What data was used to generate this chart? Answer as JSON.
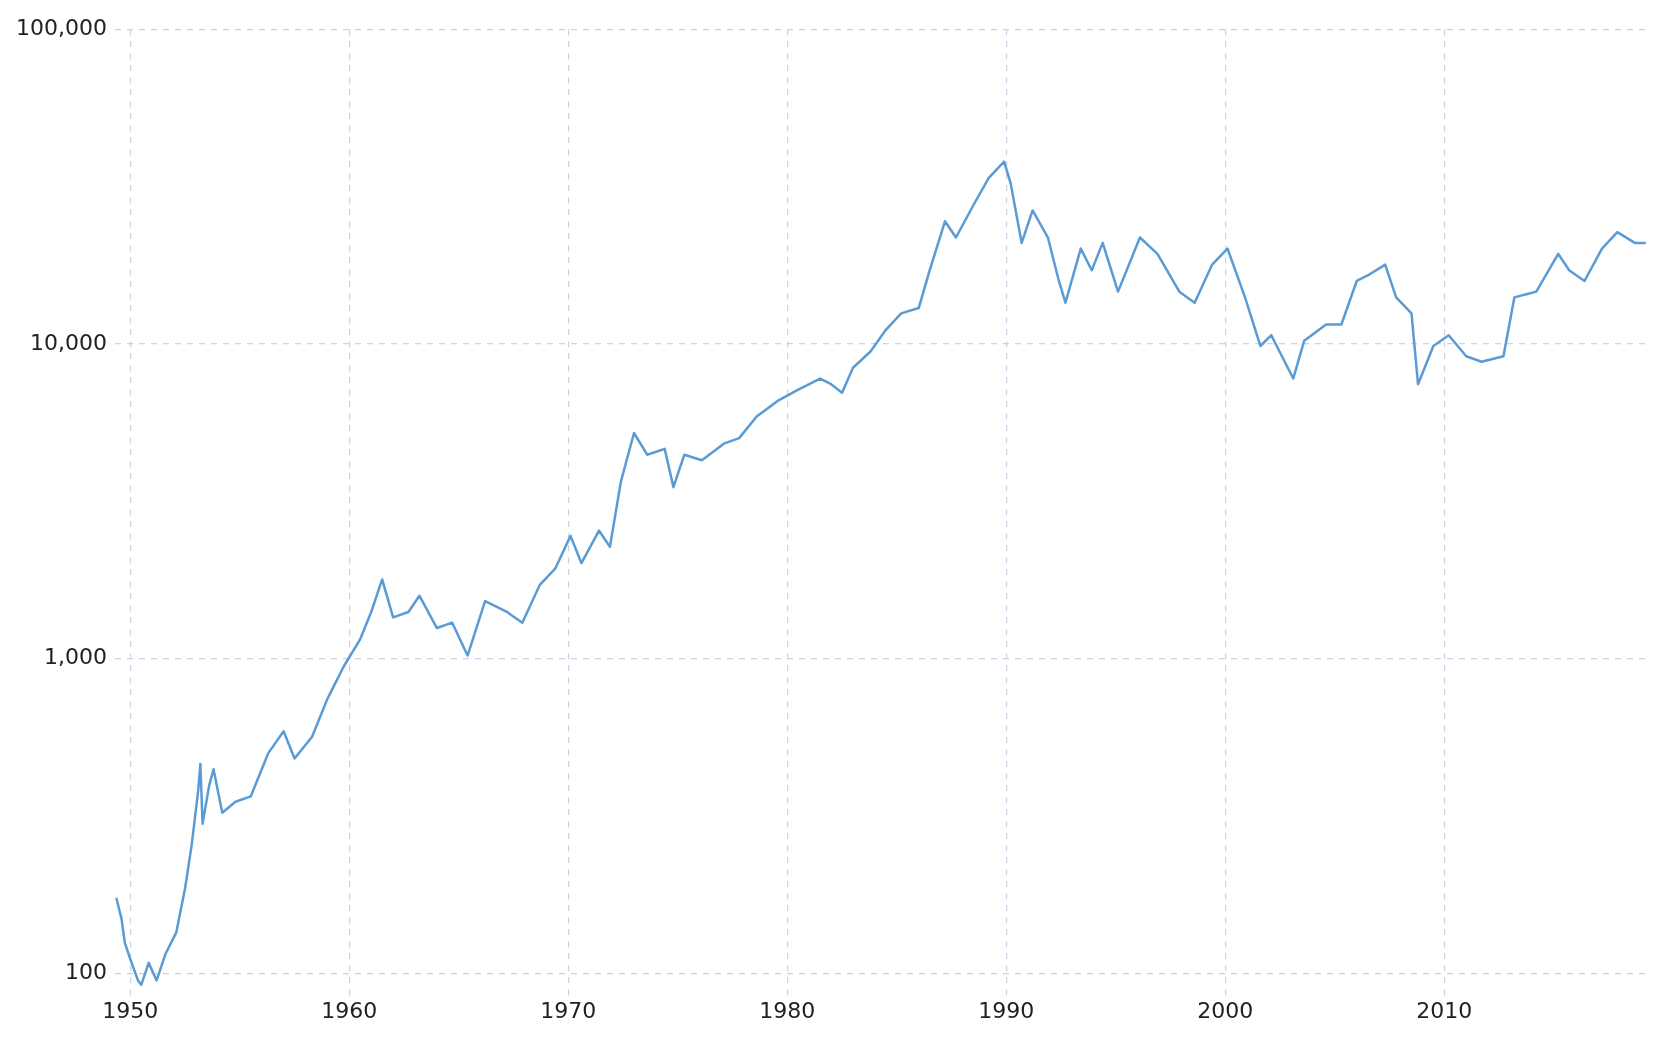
{
  "chart_data": {
    "type": "line",
    "log": "y",
    "grid": true,
    "marker": "none",
    "line_style": "solid",
    "xlim": [
      1949.3,
      2019.3
    ],
    "xticks": [
      1950,
      1960,
      1970,
      1980,
      1990,
      2000,
      2010
    ],
    "ylim": [
      85,
      100000
    ],
    "yticks": [
      {
        "value": 100,
        "label": "100"
      },
      {
        "value": 1000,
        "label": "1,000"
      },
      {
        "value": 10000,
        "label": "10,000"
      },
      {
        "value": 100000,
        "label": "100,000"
      }
    ],
    "series": [
      {
        "color": "#5b9bd5",
        "x": [
          1949.36,
          1949.6,
          1949.75,
          1950.0,
          1950.35,
          1950.5,
          1950.84,
          1951.2,
          1951.6,
          1952.1,
          1952.5,
          1952.8,
          1953.1,
          1953.2,
          1953.3,
          1953.6,
          1953.8,
          1954.2,
          1954.8,
          1955.5,
          1956.3,
          1957.0,
          1957.5,
          1958.3,
          1959.0,
          1959.75,
          1960.5,
          1961.0,
          1961.5,
          1962.0,
          1962.7,
          1963.2,
          1964.0,
          1964.7,
          1965.4,
          1966.2,
          1967.2,
          1967.9,
          1968.7,
          1969.4,
          1970.1,
          1970.6,
          1971.4,
          1971.9,
          1972.4,
          1973.0,
          1973.6,
          1974.4,
          1974.8,
          1975.3,
          1976.1,
          1977.1,
          1977.8,
          1978.6,
          1979.6,
          1980.5,
          1981.5,
          1982.0,
          1982.5,
          1983.0,
          1983.8,
          1984.5,
          1985.2,
          1986.0,
          1986.5,
          1987.2,
          1987.7,
          1988.5,
          1989.2,
          1989.9,
          1990.2,
          1990.7,
          1991.2,
          1991.9,
          1992.4,
          1992.7,
          1993.4,
          1993.9,
          1994.4,
          1995.1,
          1996.1,
          1996.9,
          1997.9,
          1998.6,
          1999.4,
          2000.1,
          2000.9,
          2001.6,
          2002.1,
          2003.1,
          2003.6,
          2004.6,
          2005.3,
          2006.0,
          2006.5,
          2007.3,
          2007.8,
          2008.5,
          2008.8,
          2009.5,
          2010.2,
          2011.0,
          2011.7,
          2012.7,
          2013.2,
          2014.2,
          2015.2,
          2015.7,
          2016.4,
          2017.2,
          2017.9,
          2018.7,
          2019.2
        ],
        "values": [
          174,
          149,
          125,
          111,
          95,
          92,
          108,
          95,
          115,
          135,
          186,
          255,
          380,
          463,
          299,
          395,
          445,
          324,
          351,
          365,
          501,
          588,
          482,
          565,
          745,
          946,
          1154,
          1407,
          1786,
          1352,
          1407,
          1585,
          1251,
          1301,
          1023,
          1524,
          1407,
          1301,
          1716,
          1931,
          2455,
          2011,
          2553,
          2265,
          3650,
          5212,
          4446,
          4640,
          3507,
          4446,
          4270,
          4820,
          5020,
          5878,
          6620,
          7160,
          7762,
          7450,
          7000,
          8400,
          9460,
          11090,
          12500,
          13000,
          17140,
          24530,
          21780,
          27630,
          33690,
          37960,
          32360,
          20940,
          26550,
          21780,
          15850,
          13520,
          20090,
          17140,
          20940,
          14660,
          21780,
          19330,
          14660,
          13520,
          17870,
          20090,
          14060,
          9850,
          10660,
          7762,
          10230,
          11530,
          11530,
          15850,
          16500,
          17870,
          14060,
          12500,
          7450,
          9850,
          10660,
          9140,
          8780,
          9140,
          14060,
          14660,
          19330,
          17140,
          15850,
          20090,
          22650,
          20940,
          20940
        ]
      }
    ]
  }
}
